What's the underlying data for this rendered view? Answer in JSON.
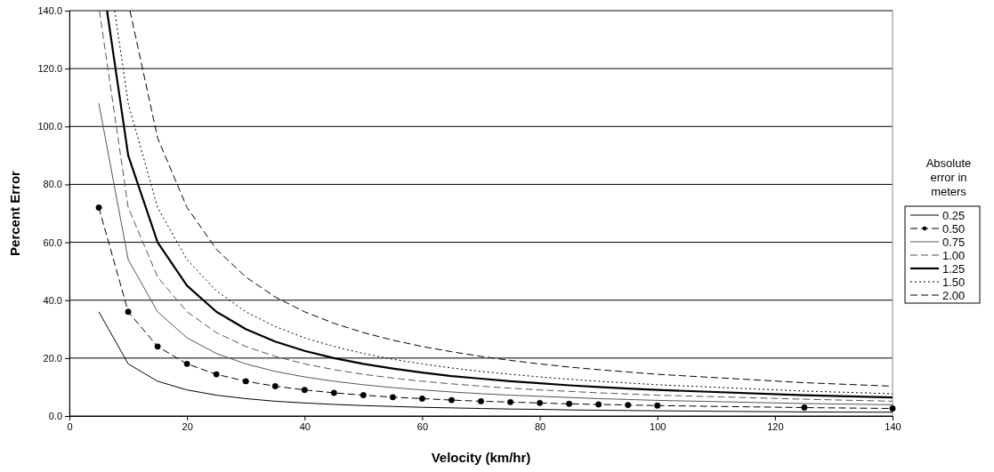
{
  "chart_data": {
    "type": "line",
    "xlabel": "Velocity (km/hr)",
    "ylabel": "Percent Error",
    "legend_title": "Absolute error in meters",
    "xlim": [
      0,
      140
    ],
    "ylim": [
      0,
      140
    ],
    "xticks": [
      0,
      20,
      40,
      60,
      80,
      100,
      120,
      140
    ],
    "yticks": [
      {
        "value": 0,
        "label": "0.0"
      },
      {
        "value": 20,
        "label": "20.0"
      },
      {
        "value": 40,
        "label": "40.0"
      },
      {
        "value": 60,
        "label": "60.0"
      },
      {
        "value": 80,
        "label": "80.0"
      },
      {
        "value": 100,
        "label": "100.0"
      },
      {
        "value": 120,
        "label": "120.0"
      },
      {
        "value": 140,
        "label": "140.0"
      }
    ],
    "grid": "y",
    "legend": "right",
    "series": [
      {
        "name": "0.25",
        "color": "#000000",
        "line_style": "solid",
        "x": [
          5,
          10,
          15,
          20,
          25,
          30,
          35,
          40,
          45,
          50,
          55,
          60,
          65,
          70,
          75,
          80,
          85,
          90,
          95,
          100,
          125,
          140
        ],
        "values": [
          36,
          18,
          12,
          9,
          7.2,
          6,
          5.1,
          4.5,
          4,
          3.6,
          3.3,
          3,
          2.8,
          2.6,
          2.4,
          2.3,
          2.1,
          2,
          1.9,
          1.8,
          1.4,
          1.3
        ]
      },
      {
        "name": "0.50",
        "color": "#000000",
        "line_style": "dashed",
        "marker": "circle",
        "x": [
          5,
          10,
          15,
          20,
          25,
          30,
          35,
          40,
          45,
          50,
          55,
          60,
          65,
          70,
          75,
          80,
          85,
          90,
          95,
          100,
          125,
          140
        ],
        "values": [
          72,
          36,
          24,
          18,
          14.4,
          12,
          10.3,
          9,
          8,
          7.2,
          6.5,
          6,
          5.5,
          5.1,
          4.8,
          4.5,
          4.2,
          4,
          3.8,
          3.6,
          2.9,
          2.6
        ]
      },
      {
        "name": "0.75",
        "color": "#555555",
        "line_style": "solid",
        "x": [
          5,
          10,
          15,
          20,
          25,
          30,
          35,
          40,
          45,
          50,
          55,
          60,
          65,
          70,
          75,
          80,
          85,
          90,
          95,
          100,
          125,
          140
        ],
        "values": [
          108,
          54,
          36,
          27,
          21.6,
          18,
          15.4,
          13.5,
          12,
          10.8,
          9.8,
          9,
          8.3,
          7.7,
          7.2,
          6.8,
          6.4,
          6,
          5.7,
          5.4,
          4.3,
          3.9
        ]
      },
      {
        "name": "1.00",
        "color": "#555555",
        "line_style": "dashed",
        "x": [
          5.1,
          10,
          15,
          20,
          25,
          30,
          35,
          40,
          45,
          50,
          55,
          60,
          65,
          70,
          75,
          80,
          85,
          90,
          95,
          100,
          125,
          140
        ],
        "values": [
          140,
          72,
          48,
          36,
          28.8,
          24,
          20.6,
          18,
          16,
          14.4,
          13.1,
          12,
          11.1,
          10.3,
          9.6,
          9,
          8.5,
          8,
          7.6,
          7.2,
          5.8,
          5.1
        ]
      },
      {
        "name": "1.25",
        "color": "#000000",
        "line_style": "solid",
        "x": [
          6.4,
          10,
          15,
          20,
          25,
          30,
          35,
          40,
          45,
          50,
          55,
          60,
          65,
          70,
          75,
          80,
          85,
          90,
          95,
          100,
          125,
          140
        ],
        "values": [
          140,
          90,
          60,
          45,
          36,
          30,
          25.7,
          22.5,
          20,
          18,
          16.4,
          15,
          13.8,
          12.9,
          12,
          11.3,
          10.6,
          10,
          9.5,
          9,
          7.2,
          6.4
        ]
      },
      {
        "name": "1.50",
        "color": "#000000",
        "line_style": "dotted",
        "x": [
          7.7,
          10,
          15,
          20,
          25,
          30,
          35,
          40,
          45,
          50,
          55,
          60,
          65,
          70,
          75,
          80,
          85,
          90,
          95,
          100,
          125,
          140
        ],
        "values": [
          140,
          108,
          72,
          54,
          43.2,
          36,
          30.9,
          27,
          24,
          21.6,
          19.6,
          18,
          16.6,
          15.4,
          14.4,
          13.5,
          12.7,
          12,
          11.4,
          10.8,
          8.6,
          7.7
        ]
      },
      {
        "name": "2.00",
        "color": "#000000",
        "line_style": "dashed",
        "x": [
          10.3,
          15,
          20,
          25,
          30,
          35,
          40,
          45,
          50,
          55,
          60,
          65,
          70,
          75,
          80,
          85,
          90,
          95,
          100,
          125,
          140
        ],
        "values": [
          140,
          96,
          72,
          57.6,
          48,
          41.1,
          36,
          32,
          28.8,
          26.2,
          24,
          22.2,
          20.6,
          19.2,
          18,
          16.9,
          16,
          15.2,
          14.4,
          11.5,
          10.3
        ]
      }
    ]
  }
}
